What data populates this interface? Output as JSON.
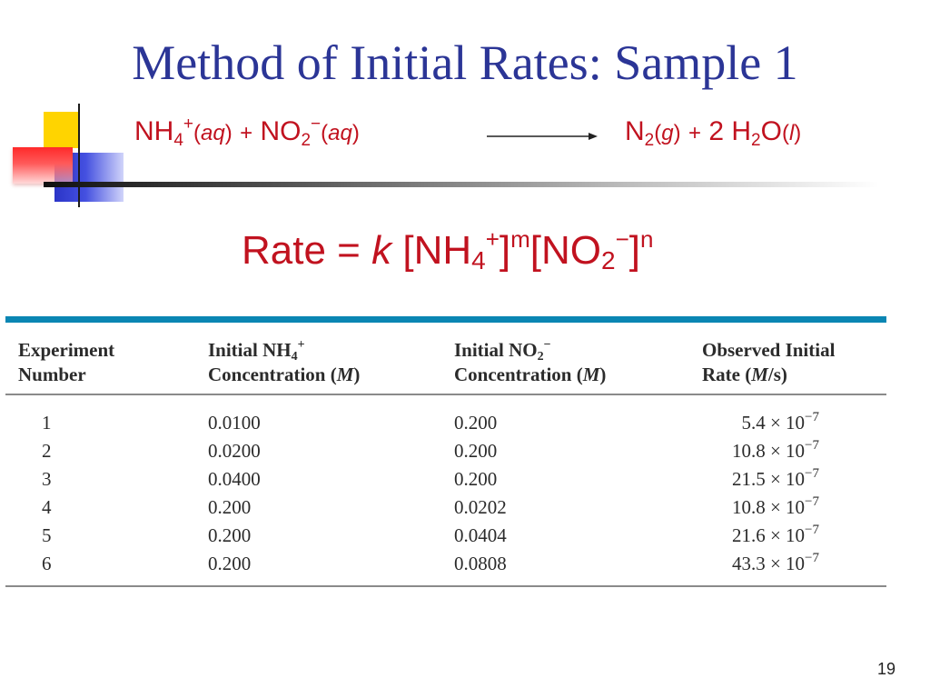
{
  "slide": {
    "title": "Method of Initial Rates: Sample 1",
    "page_number": "19"
  },
  "reaction": {
    "r1_species": "NH",
    "r1_sub": "4",
    "r1_charge": "+",
    "r1_phase": "aq",
    "plus": "+",
    "r2_species": "NO",
    "r2_sub": "2",
    "r2_charge": "−",
    "r2_phase": "aq",
    "p1_species": "N",
    "p1_sub": "2",
    "p1_phase": "g",
    "p2_coef": "2",
    "p2_species_a": "H",
    "p2_sub": "2",
    "p2_species_b": "O",
    "p2_phase": "l"
  },
  "rate_law": {
    "lhs": "Rate =",
    "k": "k",
    "c1_species": "[NH",
    "c1_sub": "4",
    "c1_charge": "+",
    "c1_close": "]",
    "m": "m",
    "c2_species": "[NO",
    "c2_sub": "2",
    "c2_charge": "−",
    "c2_close": "]",
    "n": "n"
  },
  "table": {
    "h1_line1": "Experiment",
    "h1_line2": "Number",
    "h2_prefix": "Initial NH",
    "h2_sub": "4",
    "h2_sup": "+",
    "h2_line2a": "Concentration (",
    "h2_unit": "M",
    "h2_line2b": ")",
    "h3_prefix": "Initial NO",
    "h3_sub": "2",
    "h3_sup": "−",
    "h3_line2a": "Concentration (",
    "h3_unit": "M",
    "h3_line2b": ")",
    "h4_line1": "Observed Initial",
    "h4_line2a": "Rate (",
    "h4_unit": "M",
    "h4_line2b": "/s)",
    "rows": [
      {
        "exp": "1",
        "nh4": "0.0100",
        "no2": "0.200",
        "rate_coef": "5.4",
        "rate_times": "× 10",
        "rate_exp": "−7"
      },
      {
        "exp": "2",
        "nh4": "0.0200",
        "no2": "0.200",
        "rate_coef": "10.8",
        "rate_times": "× 10",
        "rate_exp": "−7"
      },
      {
        "exp": "3",
        "nh4": "0.0400",
        "no2": "0.200",
        "rate_coef": "21.5",
        "rate_times": "× 10",
        "rate_exp": "−7"
      },
      {
        "exp": "4",
        "nh4": "0.200",
        "no2": "0.0202",
        "rate_coef": "10.8",
        "rate_times": "× 10",
        "rate_exp": "−7"
      },
      {
        "exp": "5",
        "nh4": "0.200",
        "no2": "0.0404",
        "rate_coef": "21.6",
        "rate_times": "× 10",
        "rate_exp": "−7"
      },
      {
        "exp": "6",
        "nh4": "0.200",
        "no2": "0.0808",
        "rate_coef": "43.3",
        "rate_times": "× 10",
        "rate_exp": "−7"
      }
    ]
  },
  "colors": {
    "title": "#2b3596",
    "reaction_text": "#c1121f",
    "table_top_rule": "#0a86b3"
  }
}
